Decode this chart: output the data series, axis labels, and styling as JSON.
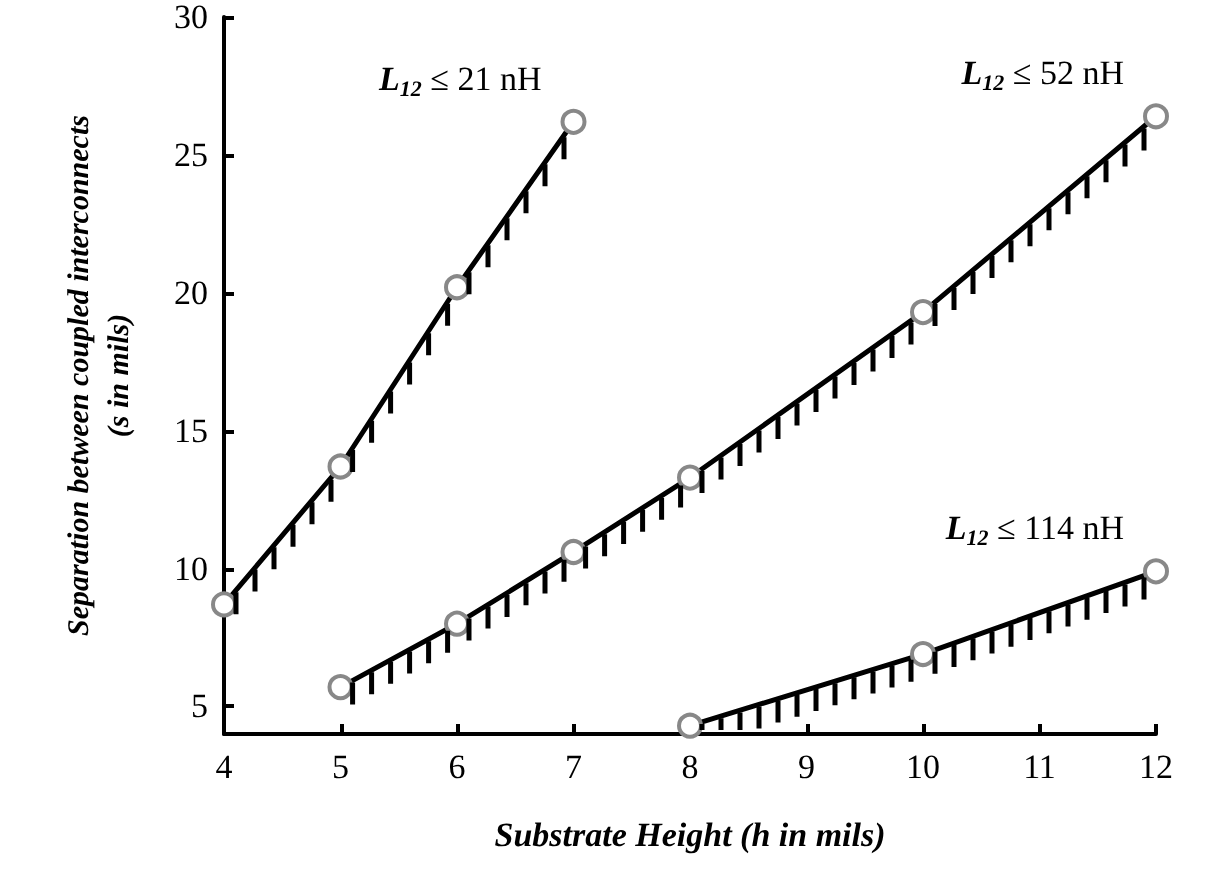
{
  "chart_data": {
    "type": "line",
    "xlabel": "Substrate Height (h in mils)",
    "ylabel": "Separation between coupled interconnects\n(s in mils)",
    "xlim": [
      4,
      12
    ],
    "xticks": [
      4,
      5,
      6,
      7,
      8,
      9,
      10,
      11,
      12
    ],
    "ylim": [
      4,
      30
    ],
    "yticks": [
      5,
      10,
      15,
      20,
      25,
      30
    ],
    "grid": false,
    "marker": "circle",
    "line_style": "solid",
    "series": [
      {
        "color": "#000000",
        "x": [
          4,
          5,
          6,
          7
        ],
        "values": [
          8.7,
          13.7,
          20.2,
          26.2
        ]
      },
      {
        "color": "#000000",
        "x": [
          5,
          6,
          7,
          8,
          10,
          12
        ],
        "values": [
          5.7,
          8.0,
          10.6,
          13.3,
          19.3,
          26.4
        ]
      },
      {
        "color": "#000000",
        "x": [
          8,
          10,
          12
        ],
        "values": [
          4.3,
          6.9,
          9.9
        ]
      }
    ],
    "annotations": [
      "L$_{12}$ ≤ 21 nH",
      "L$_{12}$ ≤ 52 nH",
      "L$_{12}$ ≤ 114 nH"
    ]
  }
}
